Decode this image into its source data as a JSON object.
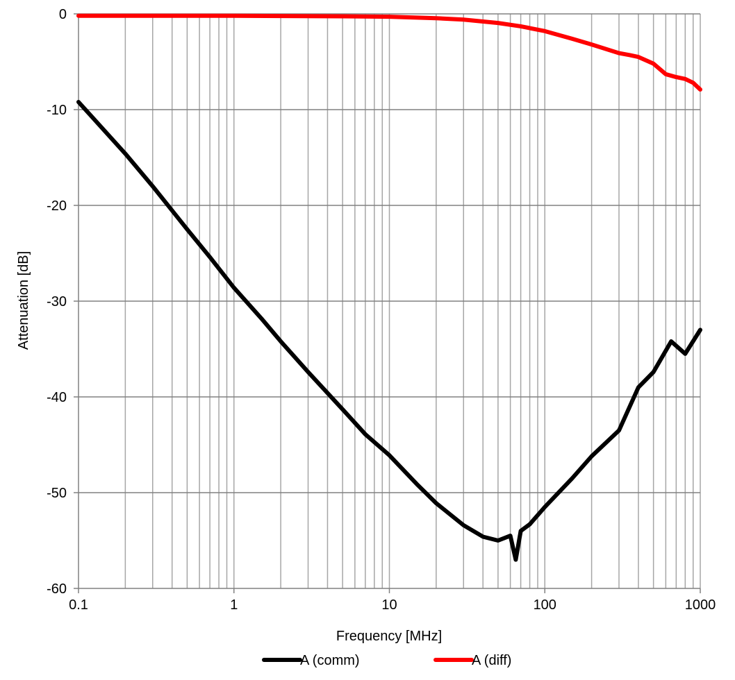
{
  "chart_data": {
    "type": "line",
    "title": "",
    "xlabel": "Frequency [MHz]",
    "ylabel": "Attenuation [dB]",
    "x_scale": "log",
    "xlim": [
      0.1,
      1000
    ],
    "ylim": [
      -60,
      0
    ],
    "x_ticks": [
      0.1,
      1,
      10,
      100,
      1000
    ],
    "x_tick_labels": [
      "0.1",
      "1",
      "10",
      "100",
      "1000"
    ],
    "y_ticks": [
      0,
      -10,
      -20,
      -30,
      -40,
      -50,
      -60
    ],
    "y_tick_labels": [
      "0",
      "-10",
      "-20",
      "-30",
      "-40",
      "-50",
      "-60"
    ],
    "grid": true,
    "legend_position": "bottom",
    "series": [
      {
        "name": "A (comm)",
        "color": "#000000",
        "x": [
          0.1,
          0.2,
          0.3,
          0.5,
          0.7,
          1,
          1.5,
          2,
          3,
          5,
          7,
          10,
          15,
          20,
          30,
          40,
          50,
          60,
          65,
          70,
          80,
          100,
          150,
          200,
          300,
          400,
          500,
          650,
          800,
          1000
        ],
        "y": [
          -9.2,
          -14.6,
          -18.0,
          -22.5,
          -25.4,
          -28.6,
          -31.8,
          -34.2,
          -37.4,
          -41.3,
          -43.9,
          -46.1,
          -49.1,
          -51.1,
          -53.4,
          -54.6,
          -55.0,
          -54.5,
          -57.0,
          -54.0,
          -53.3,
          -51.5,
          -48.5,
          -46.2,
          -43.5,
          -39.0,
          -37.4,
          -34.2,
          -35.5,
          -33.0
        ]
      },
      {
        "name": "A (diff)",
        "color": "#ff0000",
        "x": [
          0.1,
          1,
          5,
          10,
          20,
          30,
          50,
          70,
          100,
          150,
          200,
          300,
          350,
          400,
          500,
          600,
          700,
          800,
          900,
          1000
        ],
        "y": [
          -0.2,
          -0.2,
          -0.25,
          -0.3,
          -0.45,
          -0.6,
          -0.95,
          -1.3,
          -1.8,
          -2.6,
          -3.2,
          -4.1,
          -4.3,
          -4.5,
          -5.2,
          -6.3,
          -6.6,
          -6.8,
          -7.2,
          -7.9
        ]
      }
    ]
  }
}
